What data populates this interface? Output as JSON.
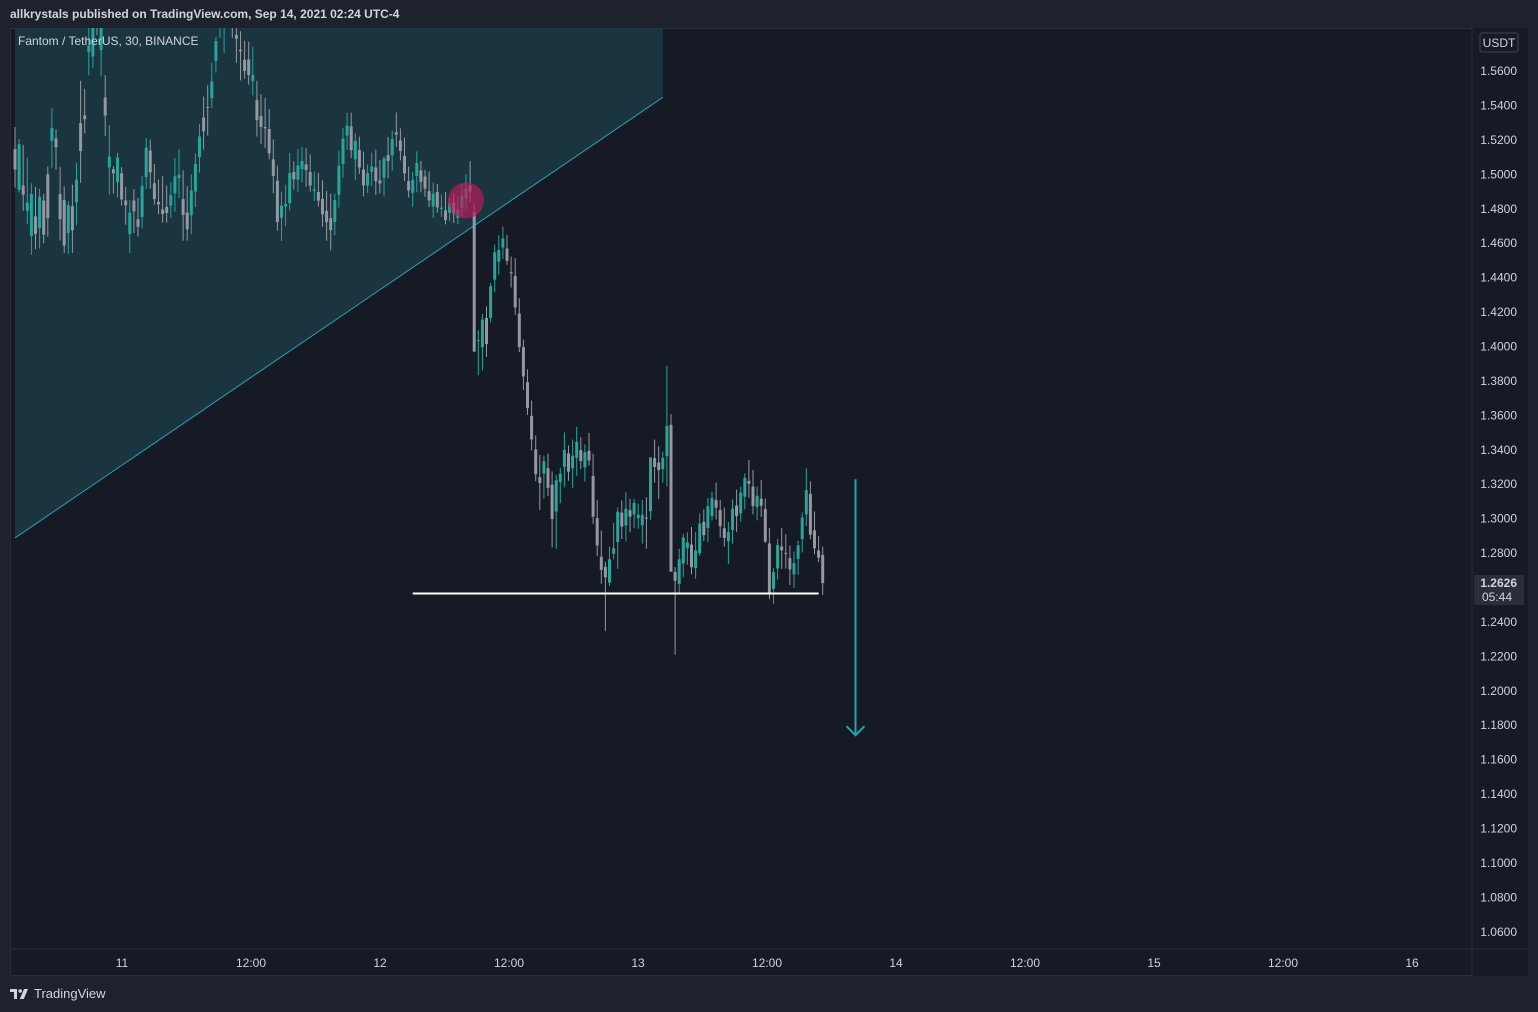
{
  "header": {
    "published_line": "allkrystals published on TradingView.com, Sep 14, 2021 02:24 UTC-4"
  },
  "chart": {
    "symbol_line": "Fantom / TetherUS, 30, BINANCE",
    "currency_badge": "USDT",
    "last_price": "1.2626",
    "countdown": "05:44"
  },
  "footer": {
    "brand": "TradingView"
  },
  "colors": {
    "background": "#161a25",
    "frame": "#1e222d",
    "candle_up": "#26a69a",
    "candle_down": "#9598a1",
    "channel_fill": "#1b3a45",
    "channel_line": "#22a4b2",
    "marker": "#c2185b",
    "support_line": "#ffffff",
    "arrow": "#22a4b2"
  },
  "chart_data": {
    "type": "candlestick",
    "title": "Fantom / TetherUS, 30, BINANCE",
    "y_axis": {
      "unit": "USDT",
      "ylim": [
        1.05,
        1.585
      ],
      "ticks": [
        "1.5600",
        "1.5400",
        "1.5200",
        "1.5000",
        "1.4800",
        "1.4600",
        "1.4400",
        "1.4200",
        "1.4000",
        "1.3800",
        "1.3600",
        "1.3400",
        "1.3200",
        "1.3000",
        "1.2800",
        "1.2600",
        "1.2400",
        "1.2200",
        "1.2000",
        "1.1800",
        "1.1600",
        "1.1400",
        "1.1200",
        "1.1000",
        "1.0800",
        "1.0600"
      ]
    },
    "x_axis": {
      "ticks": [
        "11",
        "12:00",
        "12",
        "12:00",
        "13",
        "12:00",
        "14",
        "12:00",
        "15",
        "12:00",
        "16"
      ]
    },
    "last_price": 1.2626,
    "annotations": {
      "ascending_channel_lower_bound": {
        "from": {
          "candle": 0,
          "price": 1.2888
        },
        "to": {
          "candle": 158,
          "price": 1.5447
        }
      },
      "breakout_marker": {
        "candle": 110,
        "price": 1.4848
      },
      "support_line": {
        "price": 1.2565,
        "from_candle": 97,
        "to_candle": 196
      },
      "target_arrow": {
        "candle": 205,
        "from_price": 1.3229,
        "to_price": 1.1742
      }
    },
    "candles": [
      [
        1.5146,
        1.5275,
        1.4923,
        1.5028
      ],
      [
        1.491,
        1.5204,
        1.4895,
        1.5175
      ],
      [
        1.4935,
        1.5171,
        1.4788,
        1.4882
      ],
      [
        1.4788,
        1.5095,
        1.4712,
        1.4836
      ],
      [
        1.4642,
        1.4948,
        1.4532,
        1.4886
      ],
      [
        1.4756,
        1.4927,
        1.4565,
        1.4653
      ],
      [
        1.4687,
        1.4917,
        1.4569,
        1.487
      ],
      [
        1.4848,
        1.4886,
        1.46,
        1.465
      ],
      [
        1.5,
        1.5045,
        1.4637,
        1.4745
      ],
      [
        1.5195,
        1.5383,
        1.5035,
        1.527
      ],
      [
        1.5209,
        1.5261,
        1.5028,
        1.5158
      ],
      [
        1.4885,
        1.5043,
        1.4617,
        1.474
      ],
      [
        1.485,
        1.4929,
        1.4542,
        1.4586
      ],
      [
        1.466,
        1.4843,
        1.4538,
        1.4821
      ],
      [
        1.4815,
        1.494,
        1.4544,
        1.4675
      ],
      [
        1.4837,
        1.5068,
        1.4706,
        1.4969
      ],
      [
        1.5297,
        1.5543,
        1.495,
        1.5135
      ],
      [
        1.5342,
        1.5496,
        1.5238,
        1.532
      ],
      [
        1.5709,
        1.5958,
        1.5575,
        1.5747
      ],
      [
        1.5685,
        1.588,
        1.5619,
        1.5868
      ],
      [
        1.6092,
        1.6248,
        1.5807,
        1.5935
      ],
      [
        1.5722,
        1.5983,
        1.557,
        1.5891
      ],
      [
        1.5446,
        1.5575,
        1.5224,
        1.5341
      ],
      [
        1.504,
        1.5286,
        1.4882,
        1.5104
      ],
      [
        1.5029,
        1.5047,
        1.4888,
        1.5006
      ],
      [
        1.4954,
        1.5125,
        1.4864,
        1.5098
      ],
      [
        1.5006,
        1.5042,
        1.4818,
        1.4854
      ],
      [
        1.4848,
        1.4927,
        1.4708,
        1.482
      ],
      [
        1.4653,
        1.4853,
        1.4542,
        1.4778
      ],
      [
        1.4848,
        1.4914,
        1.4658,
        1.4785
      ],
      [
        1.4739,
        1.4864,
        1.4639,
        1.4695
      ],
      [
        1.4752,
        1.4992,
        1.4687,
        1.4933
      ],
      [
        1.4984,
        1.5211,
        1.4914,
        1.5155
      ],
      [
        1.5138,
        1.5201,
        1.4917,
        1.5012
      ],
      [
        1.4948,
        1.506,
        1.4824,
        1.4856
      ],
      [
        1.484,
        1.4971,
        1.4768,
        1.4826
      ],
      [
        1.4796,
        1.4989,
        1.4719,
        1.477
      ],
      [
        1.4811,
        1.4935,
        1.4719,
        1.4776
      ],
      [
        1.4818,
        1.4954,
        1.4745,
        1.4878
      ],
      [
        1.489,
        1.5095,
        1.4783,
        1.4988
      ],
      [
        1.4978,
        1.5145,
        1.4862,
        1.4997
      ],
      [
        1.4856,
        1.5023,
        1.4614,
        1.4764
      ],
      [
        1.4778,
        1.4932,
        1.4615,
        1.4681
      ],
      [
        1.4762,
        1.5,
        1.4652,
        1.4906
      ],
      [
        1.49,
        1.5122,
        1.481,
        1.5061
      ],
      [
        1.51,
        1.5293,
        1.501,
        1.522
      ],
      [
        1.533,
        1.5452,
        1.5144,
        1.525
      ],
      [
        1.5392,
        1.5517,
        1.5225,
        1.539
      ],
      [
        1.5442,
        1.5648,
        1.5386,
        1.554
      ],
      [
        1.5659,
        1.5799,
        1.5591,
        1.5774
      ],
      [
        1.5879,
        1.6021,
        1.5792,
        1.589
      ],
      [
        1.5884,
        1.6052,
        1.5706,
        1.5966
      ],
      [
        1.6141,
        1.6283,
        1.5953,
        1.6046
      ],
      [
        1.5979,
        1.611,
        1.5792,
        1.5952
      ],
      [
        1.581,
        1.5923,
        1.5648,
        1.5788
      ],
      [
        1.5723,
        1.5831,
        1.5546,
        1.5714
      ],
      [
        1.5666,
        1.5776,
        1.5555,
        1.56
      ],
      [
        1.5667,
        1.577,
        1.552,
        1.5577
      ],
      [
        1.5541,
        1.574,
        1.5458,
        1.5577
      ],
      [
        1.5431,
        1.5543,
        1.522,
        1.5315
      ],
      [
        1.5338,
        1.5465,
        1.5175,
        1.5276
      ],
      [
        1.5275,
        1.5444,
        1.5154,
        1.5267
      ],
      [
        1.5263,
        1.5379,
        1.5087,
        1.5122
      ],
      [
        1.5087,
        1.5203,
        1.489,
        1.4991
      ],
      [
        1.4963,
        1.5051,
        1.4673,
        1.4723
      ],
      [
        1.4748,
        1.4899,
        1.4612,
        1.4818
      ],
      [
        1.4813,
        1.4939,
        1.4699,
        1.4827
      ],
      [
        1.4833,
        1.5123,
        1.4791,
        1.5007
      ],
      [
        1.5014,
        1.5075,
        1.4911,
        1.4971
      ],
      [
        1.4969,
        1.5146,
        1.4896,
        1.5052
      ],
      [
        1.5031,
        1.5158,
        1.4954,
        1.5078
      ],
      [
        1.5058,
        1.5152,
        1.4928,
        1.5025
      ],
      [
        1.5013,
        1.5116,
        1.4899,
        1.4935
      ],
      [
        1.4904,
        1.5016,
        1.4845,
        1.4913
      ],
      [
        1.4897,
        1.5009,
        1.4813,
        1.4847
      ],
      [
        1.4857,
        1.4965,
        1.4695,
        1.4767
      ],
      [
        1.4788,
        1.4903,
        1.4614,
        1.4722
      ],
      [
        1.4745,
        1.4887,
        1.4558,
        1.4676
      ],
      [
        1.4723,
        1.4888,
        1.4646,
        1.485
      ],
      [
        1.4881,
        1.5137,
        1.4807,
        1.5049
      ],
      [
        1.506,
        1.5268,
        1.4981,
        1.5207
      ],
      [
        1.5225,
        1.5358,
        1.5141,
        1.5283
      ],
      [
        1.5279,
        1.5358,
        1.5095,
        1.514
      ],
      [
        1.5087,
        1.5238,
        1.4965,
        1.5195
      ],
      [
        1.5141,
        1.5218,
        1.5001,
        1.504
      ],
      [
        1.5029,
        1.5131,
        1.4872,
        1.4936
      ],
      [
        1.4935,
        1.5057,
        1.4891,
        1.5007
      ],
      [
        1.5015,
        1.5126,
        1.4931,
        1.5045
      ],
      [
        1.504,
        1.5143,
        1.4881,
        1.496
      ],
      [
        1.4965,
        1.5083,
        1.4889,
        1.4947
      ],
      [
        1.4981,
        1.5105,
        1.4872,
        1.5092
      ],
      [
        1.5111,
        1.5217,
        1.4977,
        1.5077
      ],
      [
        1.511,
        1.5255,
        1.502,
        1.5205
      ],
      [
        1.5245,
        1.536,
        1.516,
        1.5231
      ],
      [
        1.5197,
        1.5267,
        1.5081,
        1.5136
      ],
      [
        1.5107,
        1.5213,
        1.4961,
        1.5006
      ],
      [
        1.496,
        1.5045,
        1.4866,
        1.4906
      ],
      [
        1.4892,
        1.5014,
        1.4812,
        1.4968
      ],
      [
        1.4991,
        1.5134,
        1.4896,
        1.5066
      ],
      [
        1.5023,
        1.5078,
        1.4896,
        1.4956
      ],
      [
        1.4987,
        1.5025,
        1.4869,
        1.4917
      ],
      [
        1.4902,
        1.5018,
        1.481,
        1.4849
      ],
      [
        1.4813,
        1.4952,
        1.4746,
        1.4888
      ],
      [
        1.4898,
        1.4944,
        1.4778,
        1.4808
      ],
      [
        1.4799,
        1.4883,
        1.4753,
        1.4806
      ],
      [
        1.4791,
        1.4898,
        1.4709,
        1.4734
      ],
      [
        1.4777,
        1.4864,
        1.4726,
        1.4833
      ],
      [
        1.4835,
        1.4887,
        1.4717,
        1.4773
      ],
      [
        1.4747,
        1.4872,
        1.471,
        1.4795
      ],
      [
        1.4805,
        1.4943,
        1.4753,
        1.4877
      ],
      [
        1.4861,
        1.4999,
        1.4794,
        1.4918
      ],
      [
        1.4933,
        1.5077,
        1.4837,
        1.49
      ],
      [
        1.4781,
        1.483,
        1.3968,
        1.3971
      ],
      [
        1.4036,
        1.4095,
        1.3833,
        1.4037
      ],
      [
        1.3996,
        1.4189,
        1.3861,
        1.4156
      ],
      [
        1.4165,
        1.4233,
        1.3939,
        1.4015
      ],
      [
        1.4165,
        1.4369,
        1.4139,
        1.435
      ],
      [
        1.4388,
        1.4592,
        1.4314,
        1.4547
      ],
      [
        1.4493,
        1.4646,
        1.4417,
        1.4561
      ],
      [
        1.4575,
        1.4696,
        1.4509,
        1.4628
      ],
      [
        1.4569,
        1.4648,
        1.4475,
        1.4498
      ],
      [
        1.4431,
        1.4522,
        1.4342,
        1.4426
      ],
      [
        1.441,
        1.4513,
        1.4184,
        1.4227
      ],
      [
        1.4192,
        1.428,
        1.3967,
        1.3997
      ],
      [
        1.3996,
        1.404,
        1.3747,
        1.3826
      ],
      [
        1.3792,
        1.3867,
        1.3603,
        1.3642
      ],
      [
        1.3597,
        1.3686,
        1.3396,
        1.346
      ],
      [
        1.3402,
        1.3483,
        1.3218,
        1.3258
      ],
      [
        1.324,
        1.3371,
        1.3051,
        1.3207
      ],
      [
        1.3262,
        1.3367,
        1.3116,
        1.3334
      ],
      [
        1.3293,
        1.3378,
        1.3132,
        1.3179
      ],
      [
        1.3197,
        1.3274,
        1.2833,
        1.2998
      ],
      [
        1.3041,
        1.3255,
        1.2825,
        1.3223
      ],
      [
        1.3213,
        1.3294,
        1.3089,
        1.3261
      ],
      [
        1.33,
        1.3501,
        1.3182,
        1.3399
      ],
      [
        1.3379,
        1.3425,
        1.322,
        1.3273
      ],
      [
        1.3292,
        1.3459,
        1.3178,
        1.3365
      ],
      [
        1.3353,
        1.3533,
        1.3249,
        1.3446
      ],
      [
        1.3398,
        1.3473,
        1.3287,
        1.3334
      ],
      [
        1.3298,
        1.3431,
        1.3215,
        1.3386
      ],
      [
        1.3394,
        1.3498,
        1.3308,
        1.3338
      ],
      [
        1.3248,
        1.3377,
        1.297,
        1.3011
      ],
      [
        1.3003,
        1.3107,
        1.2782,
        1.2844
      ],
      [
        1.2779,
        1.2931,
        1.2622,
        1.2702
      ],
      [
        1.272,
        1.2749,
        1.2348,
        1.2659
      ],
      [
        1.2628,
        1.2837,
        1.2608,
        1.2764
      ],
      [
        1.2795,
        1.2975,
        1.2764,
        1.2828
      ],
      [
        1.2864,
        1.3066,
        1.2708,
        1.304
      ],
      [
        1.3035,
        1.3106,
        1.2882,
        1.2954
      ],
      [
        1.296,
        1.3153,
        1.2868,
        1.3058
      ],
      [
        1.3049,
        1.3115,
        1.2921,
        1.3012
      ],
      [
        1.3024,
        1.3115,
        1.2946,
        1.3091
      ],
      [
        1.3002,
        1.3087,
        1.2941,
        1.3023
      ],
      [
        1.2961,
        1.3109,
        1.2855,
        1.3022
      ],
      [
        1.3006,
        1.3124,
        1.2825,
        1.3004
      ],
      [
        1.3043,
        1.3357,
        1.2994,
        1.3355
      ],
      [
        1.3352,
        1.3459,
        1.3208,
        1.33
      ],
      [
        1.3326,
        1.3422,
        1.3113,
        1.3282
      ],
      [
        1.3288,
        1.3389,
        1.3209,
        1.3353
      ],
      [
        1.3363,
        1.3887,
        1.3187,
        1.3539
      ],
      [
        1.3545,
        1.3607,
        1.271,
        1.2692
      ],
      [
        1.269,
        1.2719,
        1.2209,
        1.2639
      ],
      [
        1.262,
        1.2825,
        1.2563,
        1.2764
      ],
      [
        1.2739,
        1.2912,
        1.266,
        1.2891
      ],
      [
        1.2828,
        1.2921,
        1.2733,
        1.2862
      ],
      [
        1.2849,
        1.2951,
        1.2676,
        1.2718
      ],
      [
        1.2712,
        1.2921,
        1.2651,
        1.2815
      ],
      [
        1.2799,
        1.303,
        1.2785,
        1.2971
      ],
      [
        1.2981,
        1.3053,
        1.287,
        1.2904
      ],
      [
        1.2945,
        1.312,
        1.2863,
        1.3072
      ],
      [
        1.3014,
        1.3157,
        1.2989,
        1.3119
      ],
      [
        1.3108,
        1.321,
        1.2995,
        1.3063
      ],
      [
        1.305,
        1.3108,
        1.289,
        1.2956
      ],
      [
        1.2944,
        1.3064,
        1.2838,
        1.2888
      ],
      [
        1.2868,
        1.2981,
        1.2737,
        1.2923
      ],
      [
        1.2934,
        1.3112,
        1.2855,
        1.3058
      ],
      [
        1.3076,
        1.3169,
        1.2923,
        1.3014
      ],
      [
        1.303,
        1.3185,
        1.2982,
        1.3151
      ],
      [
        1.3127,
        1.3262,
        1.3054,
        1.3237
      ],
      [
        1.322,
        1.3341,
        1.3121,
        1.3203
      ],
      [
        1.3186,
        1.3283,
        1.3025,
        1.3073
      ],
      [
        1.3067,
        1.3187,
        1.299,
        1.3133
      ],
      [
        1.3116,
        1.3225,
        1.3009,
        1.3075
      ],
      [
        1.3055,
        1.3116,
        1.2859,
        1.2866
      ],
      [
        1.2856,
        1.2946,
        1.2532,
        1.2568
      ],
      [
        1.2592,
        1.2712,
        1.2506,
        1.2689
      ],
      [
        1.271,
        1.2882,
        1.2646,
        1.2847
      ],
      [
        1.2838,
        1.2947,
        1.2708,
        1.2816
      ],
      [
        1.2801,
        1.2909,
        1.271,
        1.28
      ],
      [
        1.277,
        1.2844,
        1.2614,
        1.2705
      ],
      [
        1.2677,
        1.281,
        1.2597,
        1.2741
      ],
      [
        1.2766,
        1.2871,
        1.2673,
        1.2845
      ],
      [
        1.2881,
        1.3036,
        1.2803,
        1.3007
      ],
      [
        1.3025,
        1.3292,
        1.2958,
        1.3165
      ],
      [
        1.3144,
        1.3216,
        1.288,
        1.2907
      ],
      [
        1.2932,
        1.3042,
        1.2792,
        1.2828
      ],
      [
        1.2815,
        1.2898,
        1.2747,
        1.2773
      ],
      [
        1.2789,
        1.2837,
        1.2557,
        1.2626
      ]
    ]
  }
}
